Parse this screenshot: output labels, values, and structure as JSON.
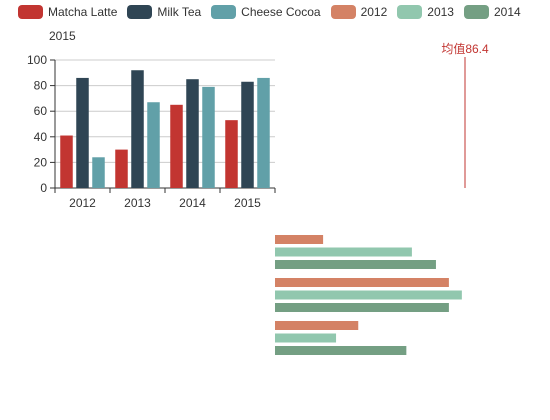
{
  "legend": [
    {
      "label": "Matcha Latte",
      "color": "#c23531"
    },
    {
      "label": "Milk Tea",
      "color": "#2f4554"
    },
    {
      "label": "Cheese Cocoa",
      "color": "#61a0a8"
    },
    {
      "label": "2012",
      "color": "#d48265"
    },
    {
      "label": "2013",
      "color": "#91c7ae"
    },
    {
      "label": "2014",
      "color": "#749f83"
    }
  ],
  "chart_data": [
    {
      "type": "bar",
      "title": "2015",
      "categories": [
        "2012",
        "2013",
        "2014",
        "2015"
      ],
      "ylim": [
        0,
        100
      ],
      "yticks": [
        0,
        20,
        40,
        60,
        80,
        100
      ],
      "grid": true,
      "series": [
        {
          "name": "Matcha Latte",
          "color": "#c23531",
          "values": [
            41,
            30,
            65,
            53
          ]
        },
        {
          "name": "Milk Tea",
          "color": "#2f4554",
          "values": [
            86,
            92,
            85,
            83
          ]
        },
        {
          "name": "Cheese Cocoa",
          "color": "#61a0a8",
          "values": [
            24,
            67,
            79,
            86
          ]
        }
      ]
    },
    {
      "type": "line",
      "markline_label": "均值86.4",
      "markline_value": 86.4,
      "markline_color": "#c23531"
    },
    {
      "type": "bar",
      "orientation": "horizontal",
      "categories": [
        "Matcha Latte",
        "Milk Tea",
        "Cheese Cocoa"
      ],
      "xlim": [
        0,
        100
      ],
      "series": [
        {
          "name": "2012",
          "color": "#d48265",
          "values": [
            26,
            94,
            45
          ]
        },
        {
          "name": "2013",
          "color": "#91c7ae",
          "values": [
            74,
            101,
            33
          ]
        },
        {
          "name": "2014",
          "color": "#749f83",
          "values": [
            87,
            94,
            71
          ]
        }
      ]
    }
  ]
}
